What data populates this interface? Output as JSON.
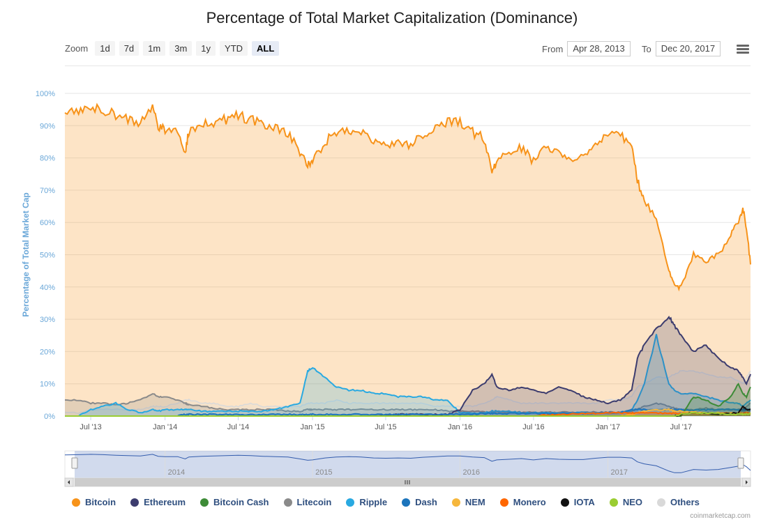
{
  "title": "Percentage of Total Market Capitalization (Dominance)",
  "zoom": {
    "label": "Zoom",
    "buttons": [
      "1d",
      "7d",
      "1m",
      "3m",
      "1y",
      "YTD",
      "ALL"
    ],
    "active": "ALL"
  },
  "range": {
    "from_label": "From",
    "from_value": "Apr 28, 2013",
    "to_label": "To",
    "to_value": "Dec 20, 2017"
  },
  "credit": "coinmarketcap.com",
  "navigator_years": [
    "2014",
    "2015",
    "2016",
    "2017"
  ],
  "colors": {
    "Bitcoin": "#f7931a",
    "Ethereum": "#3c3c6e",
    "Bitcoin Cash": "#3d8b37",
    "Litecoin": "#8a8a8a",
    "Ripple": "#29a9e1",
    "Dash": "#1c75bc",
    "NEM": "#f6b73c",
    "Monero": "#ff6600",
    "IOTA": "#111111",
    "NEO": "#9acd32",
    "Others": "#d9d9d9"
  },
  "chart_data": {
    "type": "area",
    "title": "Percentage of Total Market Capitalization (Dominance)",
    "ylabel": "Percentage of Total Market Cap",
    "ylim": [
      0,
      100
    ],
    "yticks": [
      "0%",
      "10%",
      "20%",
      "30%",
      "40%",
      "50%",
      "60%",
      "70%",
      "80%",
      "90%",
      "100%"
    ],
    "xticks": [
      "Jul '13",
      "Jan '14",
      "Jul '14",
      "Jan '15",
      "Jul '15",
      "Jan '16",
      "Jul '16",
      "Jan '17",
      "Jul '17"
    ],
    "x": [
      "2013-04-28",
      "2013-06-01",
      "2013-07-01",
      "2013-08-01",
      "2013-09-01",
      "2013-10-01",
      "2013-11-01",
      "2013-12-01",
      "2013-12-15",
      "2014-01-01",
      "2014-02-01",
      "2014-02-20",
      "2014-03-01",
      "2014-04-01",
      "2014-05-01",
      "2014-06-01",
      "2014-07-01",
      "2014-08-01",
      "2014-09-01",
      "2014-10-01",
      "2014-11-01",
      "2014-12-01",
      "2014-12-20",
      "2015-01-01",
      "2015-02-01",
      "2015-03-01",
      "2015-04-01",
      "2015-05-01",
      "2015-06-01",
      "2015-07-01",
      "2015-08-01",
      "2015-09-01",
      "2015-10-01",
      "2015-11-01",
      "2015-12-01",
      "2016-01-01",
      "2016-02-01",
      "2016-03-01",
      "2016-03-20",
      "2016-04-01",
      "2016-05-01",
      "2016-06-01",
      "2016-07-01",
      "2016-08-01",
      "2016-09-01",
      "2016-10-01",
      "2016-11-01",
      "2016-12-01",
      "2017-01-01",
      "2017-02-01",
      "2017-03-01",
      "2017-03-15",
      "2017-04-01",
      "2017-05-01",
      "2017-06-01",
      "2017-06-15",
      "2017-07-01",
      "2017-08-01",
      "2017-09-01",
      "2017-10-01",
      "2017-11-01",
      "2017-11-20",
      "2017-12-01",
      "2017-12-10",
      "2017-12-20"
    ],
    "series": [
      {
        "name": "Bitcoin",
        "values": [
          94,
          95,
          96,
          95,
          93,
          92,
          91,
          96,
          90,
          89,
          89,
          82,
          88,
          90,
          91,
          92,
          93,
          92,
          90,
          89,
          88,
          82,
          78,
          79,
          85,
          88,
          89,
          88,
          85,
          84,
          85,
          84,
          87,
          89,
          91,
          91,
          88,
          86,
          75,
          79,
          81,
          83,
          79,
          83,
          81,
          80,
          80,
          84,
          87,
          87,
          85,
          73,
          67,
          61,
          45,
          40,
          40,
          50,
          48,
          50,
          56,
          60,
          65,
          58,
          47
        ]
      },
      {
        "name": "Ethereum",
        "values": [
          0,
          0,
          0,
          0,
          0,
          0,
          0,
          0,
          0,
          0,
          0,
          0,
          0,
          0,
          0,
          0,
          0,
          0,
          0,
          0,
          0,
          0,
          0,
          0,
          0,
          0,
          0,
          0,
          0,
          0.2,
          0.5,
          0.6,
          0.6,
          0.5,
          0.5,
          2,
          8,
          10,
          13,
          9,
          8,
          9,
          8,
          7,
          9,
          8,
          6,
          5,
          4,
          5,
          8,
          18,
          22,
          27,
          31,
          28,
          25,
          20,
          22,
          18,
          15,
          14,
          12,
          10,
          13
        ]
      },
      {
        "name": "Bitcoin Cash",
        "values": [
          0,
          0,
          0,
          0,
          0,
          0,
          0,
          0,
          0,
          0,
          0,
          0,
          0,
          0,
          0,
          0,
          0,
          0,
          0,
          0,
          0,
          0,
          0,
          0,
          0,
          0,
          0,
          0,
          0,
          0,
          0,
          0,
          0,
          0,
          0,
          0,
          0,
          0,
          0,
          0,
          0,
          0,
          0,
          0,
          0,
          0,
          0,
          0,
          0,
          0,
          0,
          0,
          0,
          0,
          0,
          0,
          0,
          6,
          5,
          3,
          6,
          10,
          7,
          6,
          9
        ]
      },
      {
        "name": "Litecoin",
        "values": [
          5,
          5,
          4,
          4,
          3.5,
          4,
          5,
          7,
          6,
          6,
          5,
          4,
          3.5,
          3,
          2.5,
          2,
          2,
          2,
          2,
          2,
          1.5,
          1.5,
          2,
          2,
          2,
          2,
          2,
          2,
          2,
          2,
          2,
          2,
          2,
          2,
          1.5,
          1.5,
          1.5,
          1.3,
          1.2,
          1.2,
          1.2,
          1.2,
          1.2,
          1.2,
          1.2,
          1.2,
          1.2,
          1.2,
          1.2,
          1.2,
          1.5,
          2,
          3,
          4,
          3,
          2.5,
          2,
          2,
          2.5,
          2,
          2,
          2,
          2,
          3,
          4
        ]
      },
      {
        "name": "Ripple",
        "values": [
          0,
          0,
          2,
          3,
          4,
          2,
          1,
          2,
          1.5,
          2,
          2,
          2,
          2,
          1.5,
          1.5,
          1.5,
          1.5,
          1.5,
          1.5,
          2,
          3,
          4,
          14,
          15,
          12,
          9,
          8,
          8,
          7,
          7,
          6,
          6,
          6,
          5,
          5,
          1,
          1,
          1,
          1.5,
          1.5,
          1.5,
          1,
          1,
          1,
          1,
          1,
          1,
          1,
          1,
          1,
          2,
          5,
          10,
          25,
          10,
          8,
          7,
          7,
          6,
          5,
          4,
          4,
          3,
          4,
          5
        ]
      },
      {
        "name": "Dash",
        "values": [
          0,
          0,
          0,
          0,
          0,
          0,
          0,
          0,
          0,
          0,
          0,
          0.5,
          0.5,
          0.5,
          0.5,
          0.5,
          0.5,
          0.5,
          0.5,
          0.5,
          0.5,
          0.5,
          0.5,
          0.5,
          0.5,
          0.5,
          0.5,
          0.5,
          0.5,
          0.5,
          0.5,
          0.5,
          0.5,
          0.5,
          0.5,
          0.6,
          0.6,
          0.8,
          0.8,
          0.8,
          0.8,
          0.8,
          0.8,
          0.8,
          0.8,
          0.8,
          0.8,
          0.8,
          1,
          1.2,
          2,
          2,
          2,
          2,
          2,
          2,
          2,
          1.8,
          2,
          2,
          2,
          2,
          2,
          2,
          2
        ]
      },
      {
        "name": "NEM",
        "values": [
          0,
          0,
          0,
          0,
          0,
          0,
          0,
          0,
          0,
          0,
          0,
          0,
          0,
          0,
          0,
          0,
          0,
          0,
          0,
          0,
          0,
          0,
          0,
          0,
          0,
          0,
          0,
          0,
          0,
          0,
          0,
          0,
          0,
          0,
          0,
          0,
          0,
          0,
          0,
          0,
          0,
          0,
          0,
          0,
          0,
          0,
          0,
          0,
          0,
          0,
          0.5,
          1,
          1.5,
          2,
          2,
          1.5,
          1.5,
          1.2,
          1,
          1,
          1,
          1,
          1,
          1,
          1
        ]
      },
      {
        "name": "Monero",
        "values": [
          0,
          0,
          0,
          0,
          0,
          0,
          0,
          0,
          0,
          0,
          0,
          0,
          0,
          0,
          0,
          0,
          0,
          0,
          0,
          0,
          0,
          0,
          0,
          0,
          0,
          0,
          0,
          0,
          0,
          0,
          0,
          0,
          0,
          0,
          0,
          0,
          0,
          0,
          0,
          0,
          0,
          0,
          0,
          0.3,
          0.5,
          0.6,
          0.7,
          0.8,
          1,
          1,
          1,
          1,
          1,
          1,
          0.8,
          0.8,
          0.8,
          0.8,
          0.8,
          0.8,
          0.8,
          0.8,
          0.8,
          0.8,
          0.8
        ]
      },
      {
        "name": "IOTA",
        "values": [
          0,
          0,
          0,
          0,
          0,
          0,
          0,
          0,
          0,
          0,
          0,
          0,
          0,
          0,
          0,
          0,
          0,
          0,
          0,
          0,
          0,
          0,
          0,
          0,
          0,
          0,
          0,
          0,
          0,
          0,
          0,
          0,
          0,
          0,
          0,
          0,
          0,
          0,
          0,
          0,
          0,
          0,
          0,
          0,
          0,
          0,
          0,
          0,
          0,
          0,
          0,
          0,
          0,
          0,
          0,
          0,
          0.5,
          1,
          0.8,
          0.6,
          0.8,
          1,
          3,
          2,
          2
        ]
      },
      {
        "name": "NEO",
        "values": [
          0,
          0,
          0,
          0,
          0,
          0,
          0,
          0,
          0,
          0,
          0,
          0,
          0,
          0,
          0,
          0,
          0,
          0,
          0,
          0,
          0,
          0,
          0,
          0,
          0,
          0,
          0,
          0,
          0,
          0,
          0,
          0,
          0,
          0,
          0,
          0,
          0,
          0,
          0,
          0,
          0,
          0,
          0,
          0,
          0,
          0,
          0,
          0,
          0,
          0,
          0,
          0,
          0,
          0,
          0,
          0,
          0.5,
          1,
          1,
          0.8,
          0.6,
          0.5,
          0.6,
          0.6,
          0.7
        ]
      },
      {
        "name": "Others",
        "values": [
          1,
          1,
          2,
          2,
          2,
          2,
          2,
          3,
          3,
          3,
          4,
          5,
          5,
          4,
          4,
          3,
          3,
          4,
          3,
          3,
          3,
          3,
          4,
          4,
          4,
          5,
          4,
          4,
          4,
          4,
          4,
          4,
          4,
          3,
          3,
          3,
          3,
          4,
          5,
          6,
          5,
          4,
          4,
          4,
          4,
          4,
          4,
          4,
          5,
          5,
          6,
          9,
          10,
          12,
          12,
          13,
          14,
          14,
          13,
          12,
          12,
          11,
          10,
          12,
          14
        ]
      }
    ],
    "legend": [
      "Bitcoin",
      "Ethereum",
      "Bitcoin Cash",
      "Litecoin",
      "Ripple",
      "Dash",
      "NEM",
      "Monero",
      "IOTA",
      "NEO",
      "Others"
    ],
    "legend_position": "bottom",
    "grid": true
  }
}
